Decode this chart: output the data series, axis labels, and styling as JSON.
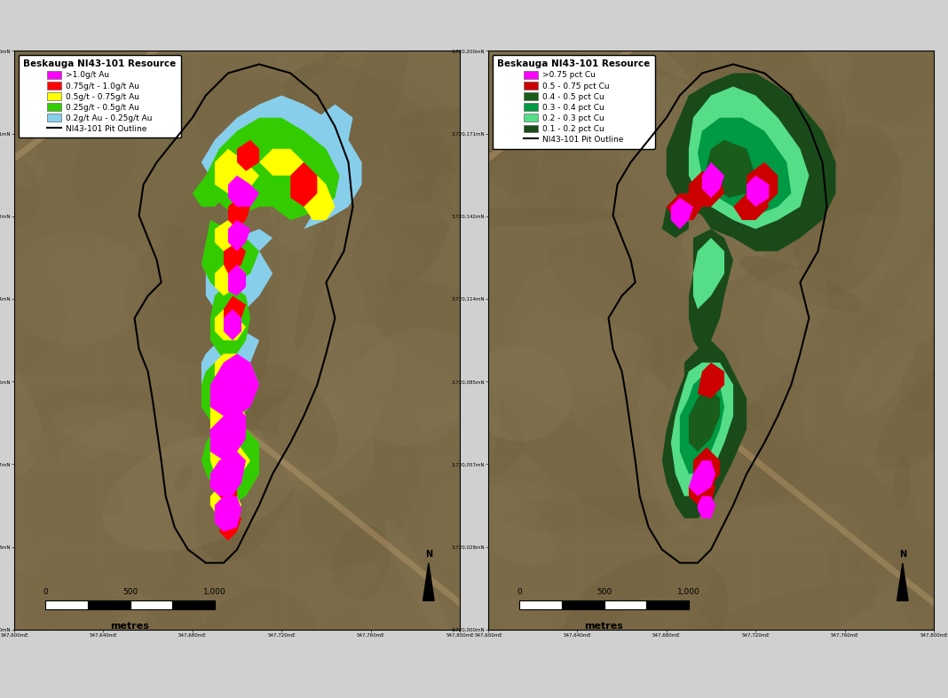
{
  "title_left": "Beskauga NI43-101 Resource",
  "title_right": "Beskauga NI43-101 Resource",
  "legend_left": [
    {
      "label": ">1.0g/t Au",
      "color": "#FF00FF"
    },
    {
      "label": "0.75g/t - 1.0g/t Au",
      "color": "#FF0000"
    },
    {
      "label": "0.5g/t - 0.75g/t Au",
      "color": "#FFFF00"
    },
    {
      "label": "0.25g/t - 0.5g/t Au",
      "color": "#33CC00"
    },
    {
      "label": "0.2g/t Au - 0.25g/t Au",
      "color": "#87CEEB"
    },
    {
      "label": "NI43-101 Pit Outline",
      "color": "#000000",
      "type": "line"
    }
  ],
  "legend_right": [
    {
      "label": ">0.75 pct Cu",
      "color": "#FF00FF"
    },
    {
      "label": "0.5 - 0.75 pct Cu",
      "color": "#CC0000"
    },
    {
      "label": "0.4 - 0.5 pct Cu",
      "color": "#1A5C1A"
    },
    {
      "label": "0.3 - 0.4 pct Cu",
      "color": "#009944"
    },
    {
      "label": "0.2 - 0.3 pct Cu",
      "color": "#55DD88"
    },
    {
      "label": "0.1 - 0.2 pct Cu",
      "color": "#1A4A1A"
    },
    {
      "label": "NI43-101 Pit Outline",
      "color": "#000000",
      "type": "line"
    }
  ],
  "terrain_color": "#7A6A48",
  "road_color": "#B89A6A"
}
